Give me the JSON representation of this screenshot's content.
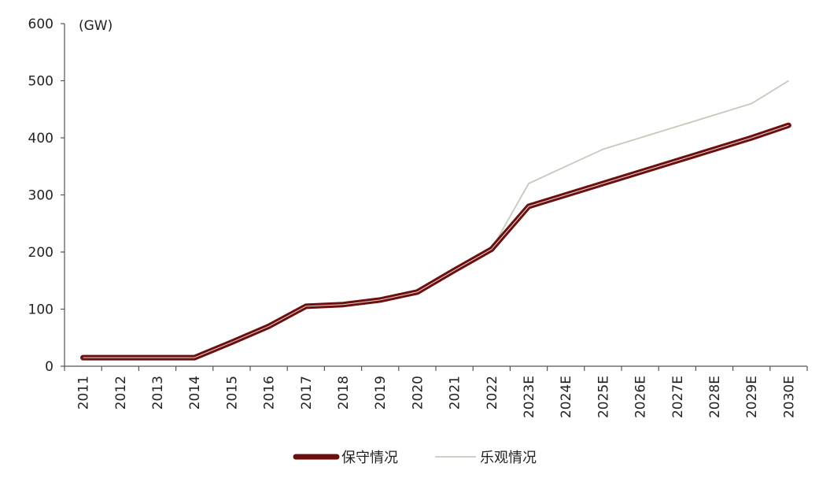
{
  "chart_data": {
    "type": "line",
    "title": "",
    "unit_label": "(GW)",
    "xlabel": "",
    "ylabel": "",
    "ylim": [
      0,
      600
    ],
    "yticks": [
      0,
      100,
      200,
      300,
      400,
      500,
      600
    ],
    "categories": [
      "2011",
      "2012",
      "2013",
      "2014",
      "2015",
      "2016",
      "2017",
      "2018",
      "2019",
      "2020",
      "2021",
      "2022",
      "2023E",
      "2024E",
      "2025E",
      "2026E",
      "2027E",
      "2028E",
      "2029E",
      "2030E"
    ],
    "series": [
      {
        "name": "保守情况",
        "color": "#6b0f0f",
        "values": [
          15,
          15,
          15,
          15,
          42,
          70,
          105,
          108,
          116,
          130,
          168,
          205,
          280,
          300,
          320,
          340,
          360,
          380,
          400,
          422
        ]
      },
      {
        "name": "乐观情况",
        "color": "#c8c8bc",
        "values": [
          15,
          15,
          15,
          15,
          42,
          70,
          105,
          108,
          116,
          130,
          168,
          205,
          320,
          350,
          380,
          400,
          420,
          440,
          460,
          500
        ]
      }
    ],
    "grid": false,
    "legend_position": "bottom-center"
  }
}
